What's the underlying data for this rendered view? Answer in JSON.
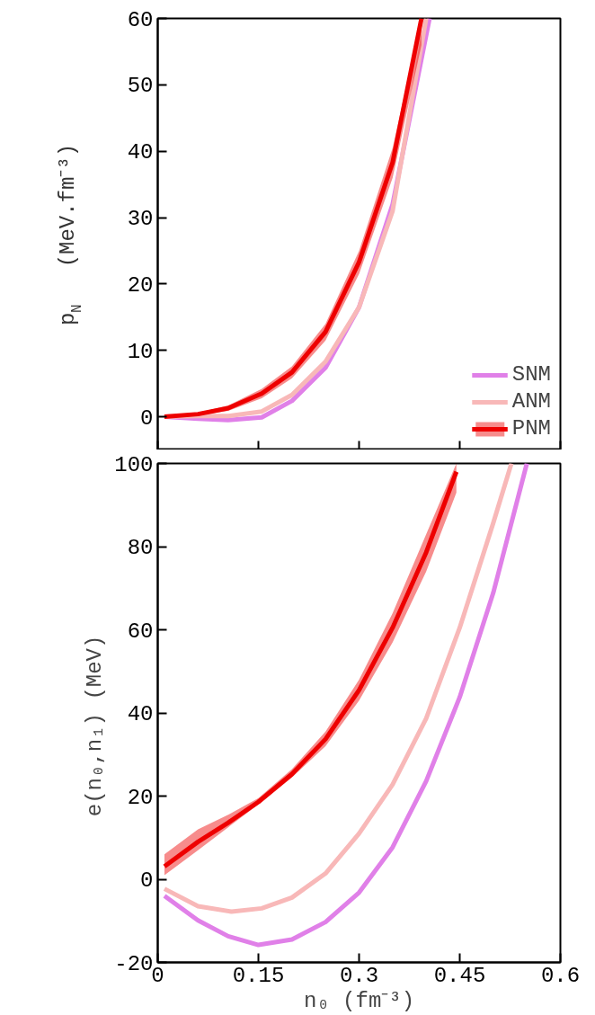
{
  "chart_data": [
    {
      "type": "line",
      "ylabel": "p$_{N}$   (MeV.fm⁻³)",
      "xlim": [
        0,
        0.6
      ],
      "xticks": [
        {
          "value": 0,
          "label": null
        },
        {
          "value": 0.15,
          "label": null
        },
        {
          "value": 0.3,
          "label": null
        },
        {
          "value": 0.45,
          "label": null
        },
        {
          "value": 0.6,
          "label": null
        }
      ],
      "ylim": [
        -5,
        60
      ],
      "yticks": [
        0,
        10,
        20,
        30,
        40,
        50,
        60
      ],
      "tick_labels": "y",
      "grid": false,
      "legend": "bottom right",
      "line_style": "solid",
      "marker": "none",
      "series": [
        {
          "name": "SNM",
          "color": "#e080e8",
          "x": [
            0.01,
            0.06,
            0.105,
            0.155,
            0.2,
            0.25,
            0.3,
            0.35,
            0.405
          ],
          "values": [
            0,
            -0.3,
            -0.5,
            -0.1,
            2.4,
            7.4,
            16.5,
            32,
            60
          ]
        },
        {
          "name": "ANM",
          "color": "#f8b8b8",
          "x": [
            0.01,
            0.06,
            0.105,
            0.155,
            0.2,
            0.25,
            0.3,
            0.35,
            0.4
          ],
          "values": [
            0,
            0.1,
            0.1,
            0.8,
            3.3,
            8.3,
            16.5,
            31,
            60
          ]
        },
        {
          "name": "PNM",
          "color": "#ee0000",
          "x": [
            0.01,
            0.06,
            0.105,
            0.155,
            0.2,
            0.25,
            0.3,
            0.35,
            0.393
          ],
          "values": [
            0,
            0.4,
            1.3,
            3.5,
            6.7,
            12.8,
            23.3,
            38.3,
            60
          ],
          "lower": [
            0,
            0.2,
            0.9,
            2.8,
            5.8,
            11.5,
            21.5,
            36,
            56
          ],
          "upper": [
            0,
            0.6,
            1.7,
            4.2,
            7.6,
            14,
            25,
            40.5,
            60
          ]
        }
      ]
    },
    {
      "type": "line",
      "xlabel": "n₀ (fm⁻³)",
      "ylabel": "e(n₀,n₁)   (MeV)",
      "xlim": [
        0,
        0.6
      ],
      "xticks": [
        0,
        0.15,
        0.3,
        0.45,
        0.6
      ],
      "ylim": [
        -20,
        100
      ],
      "yticks": [
        -20,
        0,
        20,
        40,
        60,
        80,
        100
      ],
      "grid": false,
      "line_style": "solid",
      "marker": "none",
      "series": [
        {
          "color": "#e080e8",
          "x": [
            0.01,
            0.06,
            0.105,
            0.15,
            0.2,
            0.25,
            0.3,
            0.35,
            0.4,
            0.45,
            0.5,
            0.55
          ],
          "values": [
            -4,
            -9.9,
            -13.7,
            -15.8,
            -14.5,
            -10.3,
            -3.2,
            7.7,
            23.6,
            43.8,
            68.9,
            100
          ]
        },
        {
          "color": "#f8b8b8",
          "x": [
            0.01,
            0.06,
            0.11,
            0.155,
            0.2,
            0.25,
            0.3,
            0.35,
            0.4,
            0.45,
            0.5,
            0.527
          ],
          "values": [
            -2.3,
            -6.5,
            -7.8,
            -7,
            -4.4,
            1.4,
            11,
            22.8,
            38.7,
            60.5,
            85.7,
            100
          ]
        },
        {
          "color": "#ee0000",
          "x": [
            0.01,
            0.06,
            0.105,
            0.15,
            0.2,
            0.25,
            0.3,
            0.35,
            0.4,
            0.445
          ],
          "values": [
            3.1,
            9,
            13.6,
            18.6,
            25.3,
            33.7,
            45.5,
            60.5,
            78.6,
            98
          ],
          "lower": [
            1,
            7,
            12.5,
            18,
            24.5,
            32,
            43,
            57,
            74,
            93
          ],
          "upper": [
            6,
            12,
            15.5,
            19.5,
            26.5,
            35.5,
            48,
            64,
            83,
            100
          ]
        }
      ]
    }
  ]
}
